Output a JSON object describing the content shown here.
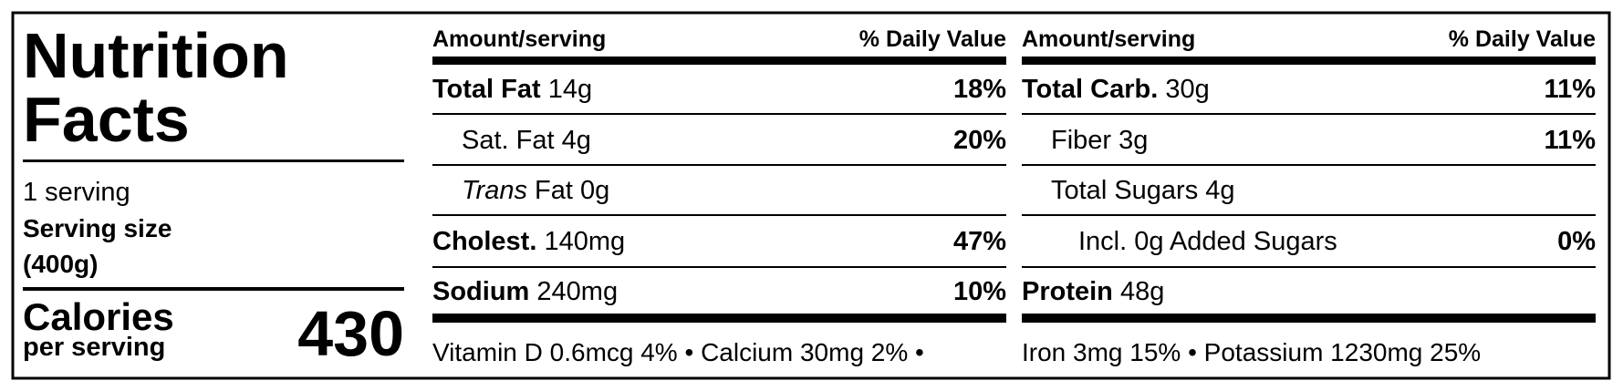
{
  "title": [
    "Nutrition",
    "Facts"
  ],
  "servings": "1 serving",
  "serving_size_label": "Serving size",
  "serving_size": "(400g)",
  "calories": {
    "label": "Calories",
    "sublabel": "per serving",
    "value": 430
  },
  "columns": [
    {
      "amount_header": "Amount/serving",
      "dv_header": "% Daily Value",
      "rows": [
        {
          "nutrient": "Total Fat",
          "amount": "14g",
          "dv": "18%"
        },
        {
          "label": "Sat. Fat",
          "amount": "4g",
          "dv": "20%"
        },
        {
          "label_italic": "Trans",
          "label": "Fat",
          "amount": "0g"
        },
        {
          "nutrient": "Cholest.",
          "amount": "140mg",
          "dv": "47%"
        },
        {
          "nutrient": "Sodium",
          "amount": "240mg",
          "dv": "10%"
        }
      ],
      "footer": "Vitamin D 0.6mcg 4% • Calcium 30mg 2% •"
    },
    {
      "amount_header": "Amount/serving",
      "dv_header": "% Daily Value",
      "rows": [
        {
          "nutrient": "Total Carb.",
          "amount": "30g",
          "dv": "11%"
        },
        {
          "label": "Fiber",
          "amount": "3g",
          "dv": "11%"
        },
        {
          "label": "Total Sugars",
          "amount": "4g"
        },
        {
          "label": "Incl. 0g Added Sugars",
          "dv": "0%"
        },
        {
          "nutrient": "Protein",
          "amount": "48g"
        }
      ],
      "footer": "Iron 3mg 15% • Potassium 1230mg 25%"
    }
  ]
}
